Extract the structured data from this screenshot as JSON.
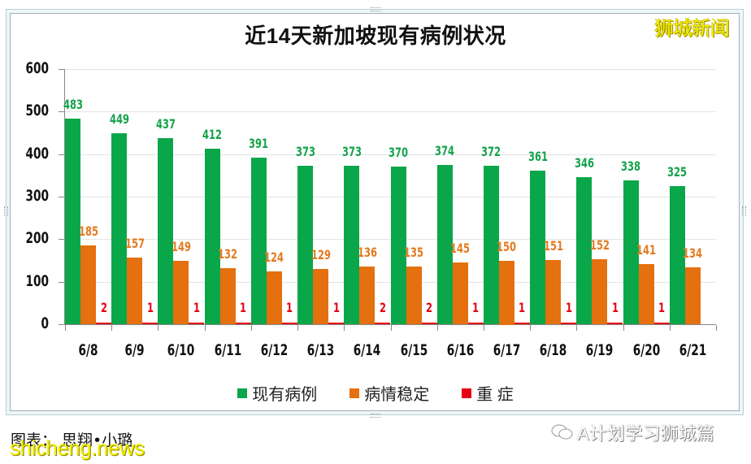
{
  "header": {
    "title": "近14天新加坡现有病例状况",
    "watermark_top_right": "狮城新闻"
  },
  "footer": {
    "caption": "图表： 思翔•小璐",
    "watermark_bottom_left": "shicheng.news",
    "watermark_bottom_right": "A计划学习狮城篇"
  },
  "colors": {
    "current_cases": "#0aa64a",
    "stable": "#e4700f",
    "critical": "#e60012"
  },
  "legend": [
    {
      "label": "现有病例",
      "color": "#0aa64a"
    },
    {
      "label": "病情稳定",
      "color": "#e4700f"
    },
    {
      "label": "重 症",
      "color": "#e60012"
    }
  ],
  "y_ticks": [
    "0",
    "100",
    "200",
    "300",
    "400",
    "500",
    "600"
  ],
  "chart_data": {
    "type": "bar",
    "title": "近14天新加坡现有病例状况",
    "xlabel": "",
    "ylabel": "",
    "ylim": [
      0,
      600
    ],
    "grid": true,
    "legend_position": "bottom",
    "categories": [
      "6/8",
      "6/9",
      "6/10",
      "6/11",
      "6/12",
      "6/13",
      "6/14",
      "6/15",
      "6/16",
      "6/17",
      "6/18",
      "6/19",
      "6/20",
      "6/21"
    ],
    "series": [
      {
        "name": "现有病例",
        "values": [
          483,
          449,
          437,
          412,
          391,
          373,
          373,
          370,
          374,
          372,
          361,
          346,
          338,
          325
        ]
      },
      {
        "name": "病情稳定",
        "values": [
          185,
          157,
          149,
          132,
          124,
          129,
          136,
          135,
          145,
          150,
          151,
          152,
          141,
          134
        ]
      },
      {
        "name": "重 症",
        "values": [
          2,
          1,
          1,
          1,
          1,
          1,
          2,
          2,
          1,
          1,
          1,
          1,
          1,
          null
        ]
      }
    ]
  }
}
